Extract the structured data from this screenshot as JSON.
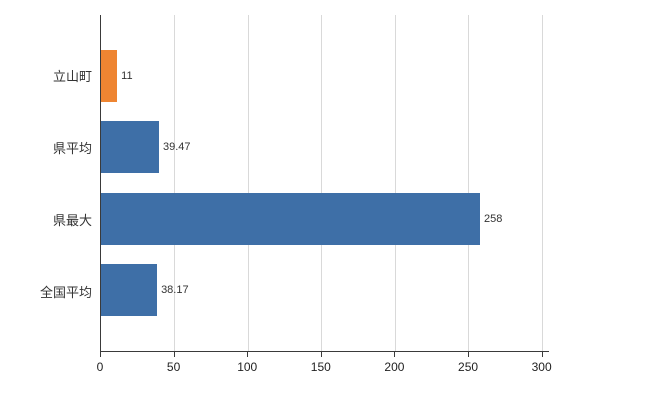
{
  "chart_data": {
    "type": "bar",
    "orientation": "horizontal",
    "title": "",
    "xlabel": "",
    "ylabel": "",
    "categories": [
      "立山町",
      "県平均",
      "県最大",
      "全国平均"
    ],
    "values": [
      11,
      39.47,
      258,
      38.17
    ],
    "value_labels": [
      "11",
      "39.47",
      "258",
      "38.17"
    ],
    "bar_colors": [
      "#ee8532",
      "#3e6fa7",
      "#3e6fa7",
      "#3e6fa7"
    ],
    "xlim": [
      0,
      305
    ],
    "tick_values": [
      0,
      50,
      100,
      150,
      200,
      250,
      300
    ],
    "tick_labels": [
      "0",
      "50",
      "100",
      "150",
      "200",
      "250",
      "300"
    ],
    "grid": true,
    "gridline_color": "#d9d9d9",
    "axis_color": "#3a3a3a",
    "legend": "none"
  }
}
